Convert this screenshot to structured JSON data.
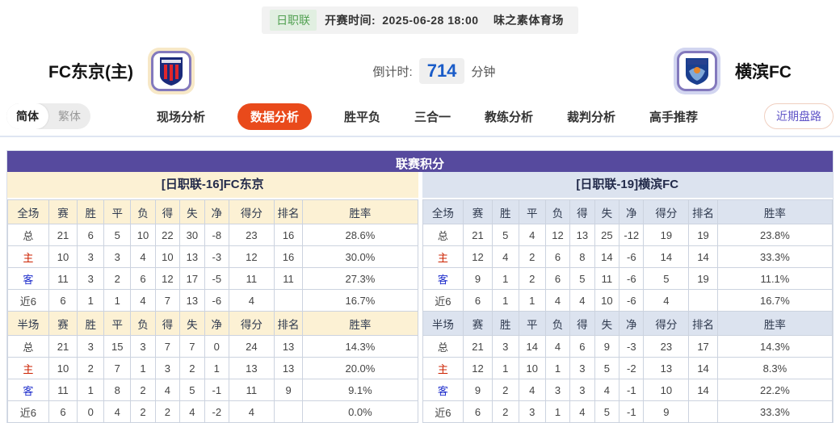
{
  "top_bar": {
    "league_tag": "日职联",
    "kickoff_label": "开赛时间:",
    "kickoff_time": "2025-06-28 18:00",
    "venue": "味之素体育场"
  },
  "teams": {
    "home": {
      "name": "FC东京(主)"
    },
    "away": {
      "name": "横滨FC"
    }
  },
  "countdown": {
    "label": "倒计时:",
    "value": "714",
    "unit": "分钟"
  },
  "lang_toggle": {
    "simplified": "简体",
    "traditional": "繁体"
  },
  "tabs": [
    {
      "label": "现场分析",
      "active": false
    },
    {
      "label": "数据分析",
      "active": true
    },
    {
      "label": "胜平负",
      "active": false
    },
    {
      "label": "三合一",
      "active": false
    },
    {
      "label": "教练分析",
      "active": false
    },
    {
      "label": "裁判分析",
      "active": false
    },
    {
      "label": "高手推荐",
      "active": false
    }
  ],
  "recent_button_label": "近期盘路",
  "colors": {
    "accent_purple": "#564a9e",
    "active_tab_orange": "#e94a1b",
    "home_theme_cream": "#fcf1d4",
    "away_theme_blue": "#dce3ef",
    "countdown_blue": "#1a5cc8",
    "league_tag_green": "#52a152",
    "home_row_red": "#cc2200",
    "away_row_blue": "#1f2ecc"
  },
  "standings": {
    "title": "联赛积分",
    "columns": [
      "赛",
      "胜",
      "平",
      "负",
      "得",
      "失",
      "净",
      "得分",
      "排名",
      "胜率"
    ],
    "left": {
      "team_header": "[日职联-16]FC东京",
      "sections": [
        {
          "scope": "全场",
          "rows": [
            {
              "label": "总",
              "type": "total",
              "values": [
                "21",
                "6",
                "5",
                "10",
                "22",
                "30",
                "-8",
                "23",
                "16",
                "28.6%"
              ]
            },
            {
              "label": "主",
              "type": "home",
              "values": [
                "10",
                "3",
                "3",
                "4",
                "10",
                "13",
                "-3",
                "12",
                "16",
                "30.0%"
              ]
            },
            {
              "label": "客",
              "type": "away",
              "values": [
                "11",
                "3",
                "2",
                "6",
                "12",
                "17",
                "-5",
                "11",
                "11",
                "27.3%"
              ]
            },
            {
              "label": "近6",
              "type": "recent",
              "values": [
                "6",
                "1",
                "1",
                "4",
                "7",
                "13",
                "-6",
                "4",
                "",
                "16.7%"
              ]
            }
          ]
        },
        {
          "scope": "半场",
          "rows": [
            {
              "label": "总",
              "type": "total",
              "values": [
                "21",
                "3",
                "15",
                "3",
                "7",
                "7",
                "0",
                "24",
                "13",
                "14.3%"
              ]
            },
            {
              "label": "主",
              "type": "home",
              "values": [
                "10",
                "2",
                "7",
                "1",
                "3",
                "2",
                "1",
                "13",
                "13",
                "20.0%"
              ]
            },
            {
              "label": "客",
              "type": "away",
              "values": [
                "11",
                "1",
                "8",
                "2",
                "4",
                "5",
                "-1",
                "11",
                "9",
                "9.1%"
              ]
            },
            {
              "label": "近6",
              "type": "recent",
              "values": [
                "6",
                "0",
                "4",
                "2",
                "2",
                "4",
                "-2",
                "4",
                "",
                "0.0%"
              ]
            }
          ]
        }
      ]
    },
    "right": {
      "team_header": "[日职联-19]横滨FC",
      "sections": [
        {
          "scope": "全场",
          "rows": [
            {
              "label": "总",
              "type": "total",
              "values": [
                "21",
                "5",
                "4",
                "12",
                "13",
                "25",
                "-12",
                "19",
                "19",
                "23.8%"
              ]
            },
            {
              "label": "主",
              "type": "home",
              "values": [
                "12",
                "4",
                "2",
                "6",
                "8",
                "14",
                "-6",
                "14",
                "14",
                "33.3%"
              ]
            },
            {
              "label": "客",
              "type": "away",
              "values": [
                "9",
                "1",
                "2",
                "6",
                "5",
                "11",
                "-6",
                "5",
                "19",
                "11.1%"
              ]
            },
            {
              "label": "近6",
              "type": "recent",
              "values": [
                "6",
                "1",
                "1",
                "4",
                "4",
                "10",
                "-6",
                "4",
                "",
                "16.7%"
              ]
            }
          ]
        },
        {
          "scope": "半场",
          "rows": [
            {
              "label": "总",
              "type": "total",
              "values": [
                "21",
                "3",
                "14",
                "4",
                "6",
                "9",
                "-3",
                "23",
                "17",
                "14.3%"
              ]
            },
            {
              "label": "主",
              "type": "home",
              "values": [
                "12",
                "1",
                "10",
                "1",
                "3",
                "5",
                "-2",
                "13",
                "14",
                "8.3%"
              ]
            },
            {
              "label": "客",
              "type": "away",
              "values": [
                "9",
                "2",
                "4",
                "3",
                "3",
                "4",
                "-1",
                "10",
                "14",
                "22.2%"
              ]
            },
            {
              "label": "近6",
              "type": "recent",
              "values": [
                "6",
                "2",
                "3",
                "1",
                "4",
                "5",
                "-1",
                "9",
                "",
                "33.3%"
              ]
            }
          ]
        }
      ]
    }
  }
}
